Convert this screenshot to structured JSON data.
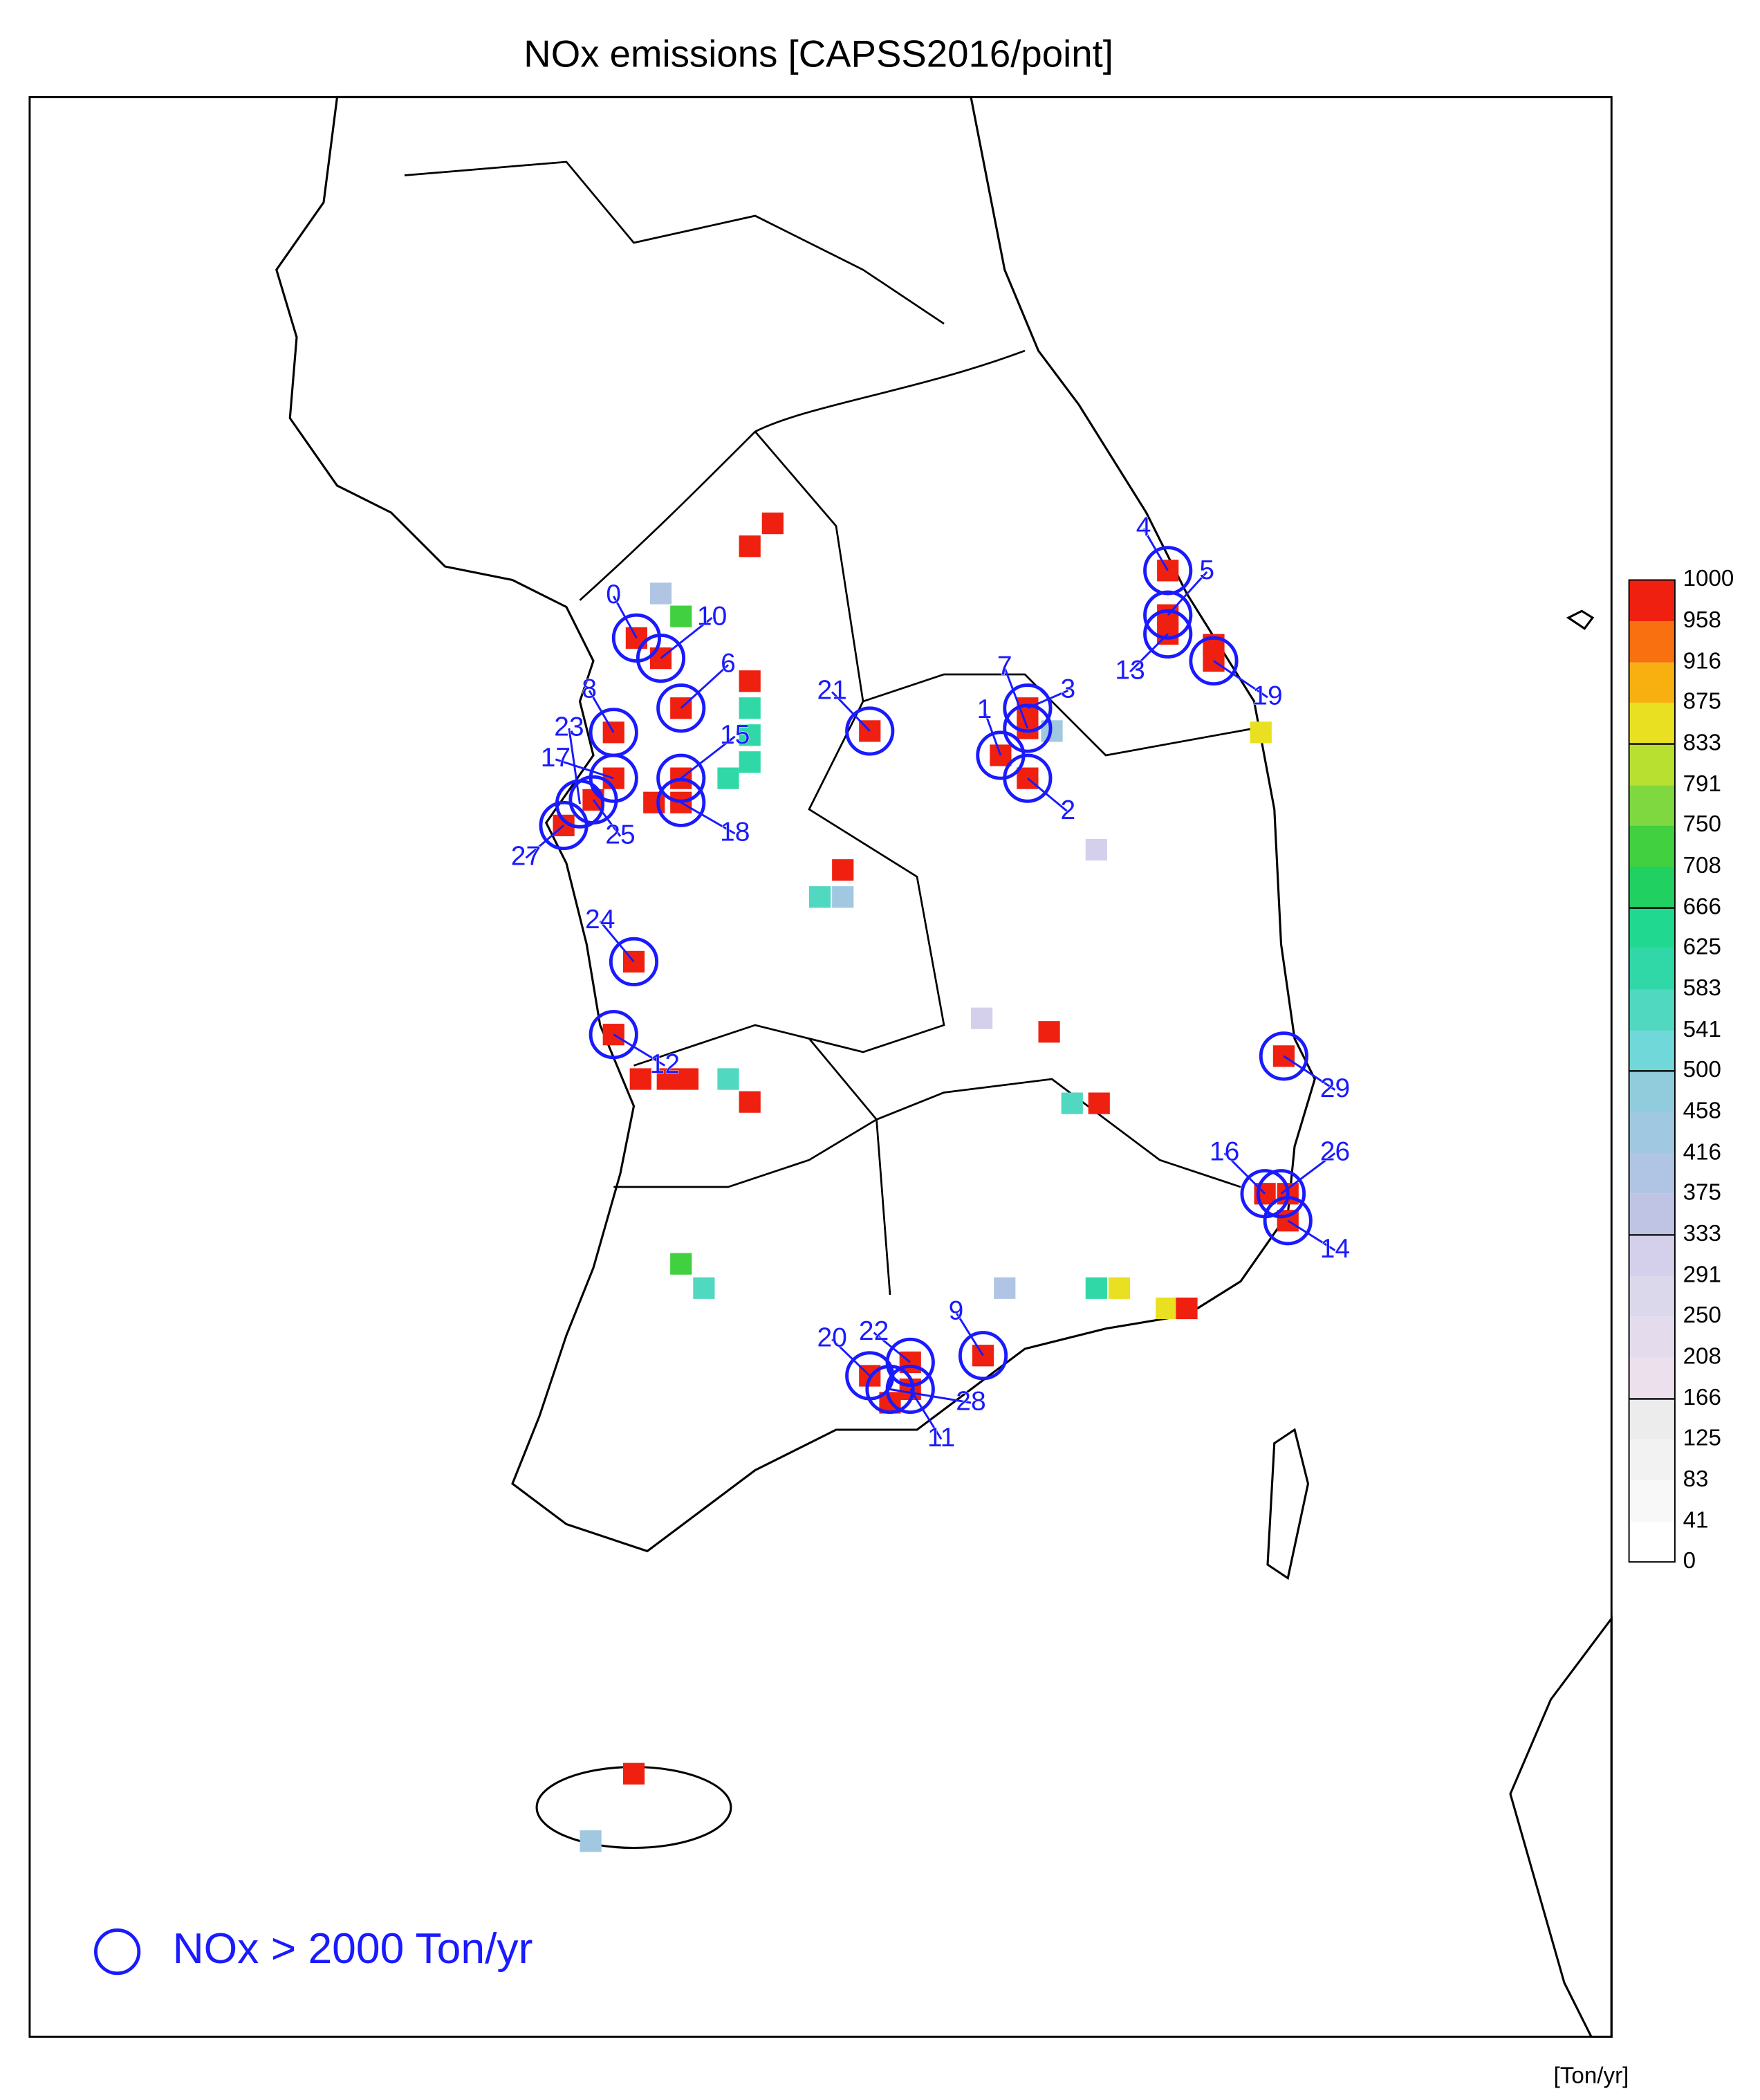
{
  "title": "NOx emissions [CAPSS2016/point]",
  "unit": "[Ton/yr]",
  "legend": "NOx > 2000 Ton/yr",
  "colorbar": {
    "ticks": [
      0,
      41,
      83,
      125,
      166,
      208,
      250,
      291,
      333,
      375,
      416,
      458,
      500,
      541,
      583,
      625,
      666,
      708,
      750,
      791,
      833,
      875,
      916,
      958,
      1000
    ],
    "colors": [
      "#ffffff",
      "#f8f8f8",
      "#f2f2f2",
      "#ececec",
      "#ece0ec",
      "#e4dcec",
      "#dcd8ec",
      "#d4d0ec",
      "#c0c4e4",
      "#b0c4e4",
      "#a0c8e0",
      "#90ccdc",
      "#70d8d8",
      "#50d8c0",
      "#30d8a8",
      "#20d890",
      "#20d060",
      "#40d040",
      "#80d840",
      "#b8e030",
      "#e8e020",
      "#f8b010",
      "#f87010",
      "#f02010"
    ]
  },
  "cells": {
    "values": [
      1000,
      1000,
      375,
      708,
      1000,
      1000,
      1000,
      1000,
      583,
      583,
      583,
      583,
      1000,
      1000,
      1000,
      1000,
      1000,
      1000,
      1000,
      1000,
      1000,
      1000,
      1000,
      1000,
      416,
      1000,
      1000,
      1000,
      1000,
      1000,
      833,
      1000,
      541,
      416,
      291,
      1000,
      1000,
      1000,
      1000,
      1000,
      541,
      1000,
      291,
      1000,
      541,
      1000,
      1000,
      1000,
      1000,
      1000,
      708,
      541,
      375,
      583,
      833,
      833,
      1000,
      1000,
      1000,
      1000,
      1000,
      1000,
      1000,
      416
    ]
  },
  "sites": {
    "labels": [
      "0",
      "1",
      "2",
      "3",
      "4",
      "5",
      "6",
      "7",
      "8",
      "9",
      "10",
      "11",
      "12",
      "13",
      "14",
      "15",
      "16",
      "17",
      "18",
      "19",
      "20",
      "21",
      "22",
      "23",
      "24",
      "25",
      "26",
      "27",
      "28",
      "29"
    ]
  }
}
